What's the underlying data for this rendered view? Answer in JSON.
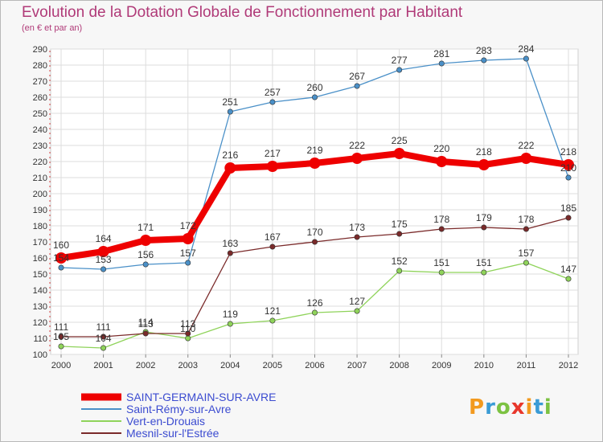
{
  "title": "Evolution de la Dotation Globale de Fonctionnement par Habitant",
  "subtitle": "(en € et par an)",
  "logo": {
    "text": "Proxiti",
    "colors": [
      "#f29a1f",
      "#3a9bd5",
      "#7cc242",
      "#e8372c",
      "#f29a1f",
      "#3a9bd5",
      "#7cc242"
    ]
  },
  "chart_data": {
    "type": "line",
    "title": "Evolution de la Dotation Globale de Fonctionnement par Habitant",
    "subtitle": "(en € et par an)",
    "xlabel": "",
    "ylabel": "",
    "x": [
      "2000",
      "2001",
      "2002",
      "2003",
      "2004",
      "2005",
      "2006",
      "2007",
      "2008",
      "2009",
      "2010",
      "2011",
      "2012"
    ],
    "ylim": [
      100,
      290
    ],
    "yticks": [
      100,
      110,
      120,
      130,
      140,
      150,
      160,
      170,
      180,
      190,
      200,
      210,
      220,
      230,
      240,
      250,
      260,
      270,
      280,
      290
    ],
    "grid": true,
    "legend_position": "bottom-left",
    "series": [
      {
        "name": "Saint-Rémy-sur-Avre",
        "color": "#4a90c8",
        "values": [
          154,
          153,
          156,
          157,
          251,
          257,
          260,
          267,
          277,
          281,
          283,
          284,
          210
        ],
        "labels": [
          "154",
          "153",
          "156",
          "157",
          "251",
          "257",
          "260",
          "267",
          "277",
          "281",
          "283",
          "284",
          "210"
        ]
      },
      {
        "name": "Vert-en-Drouais",
        "color": "#8fd35a",
        "values": [
          105,
          104,
          114,
          110,
          119,
          121,
          126,
          127,
          152,
          151,
          151,
          157,
          147
        ],
        "labels": [
          "105",
          "104",
          "114",
          "110",
          "119",
          "121",
          "126",
          "127",
          "152",
          "151",
          "151",
          "157",
          "147"
        ]
      },
      {
        "name": "Mesnil-sur-l'Estrée",
        "color": "#7a2a2a",
        "values": [
          111,
          111,
          113,
          113,
          163,
          167,
          170,
          173,
          175,
          178,
          179,
          178,
          185
        ],
        "labels": [
          "111",
          "111",
          "113",
          "113",
          "163",
          "167",
          "170",
          "173",
          "175",
          "178",
          "179",
          "178",
          "185"
        ]
      },
      {
        "name": "SAINT-GERMAIN-SUR-AVRE",
        "color": "#ee0000",
        "values": [
          160,
          164,
          171,
          172,
          216,
          217,
          219,
          222,
          225,
          220,
          218,
          222,
          218
        ],
        "labels": [
          "160",
          "164",
          "171",
          "172",
          "216",
          "217",
          "219",
          "222",
          "225",
          "220",
          "218",
          "222",
          "218"
        ],
        "emphasis": true
      }
    ],
    "legend": [
      "SAINT-GERMAIN-SUR-AVRE",
      "Saint-Rémy-sur-Avre",
      "Vert-en-Drouais",
      "Mesnil-sur-l'Estrée"
    ]
  }
}
